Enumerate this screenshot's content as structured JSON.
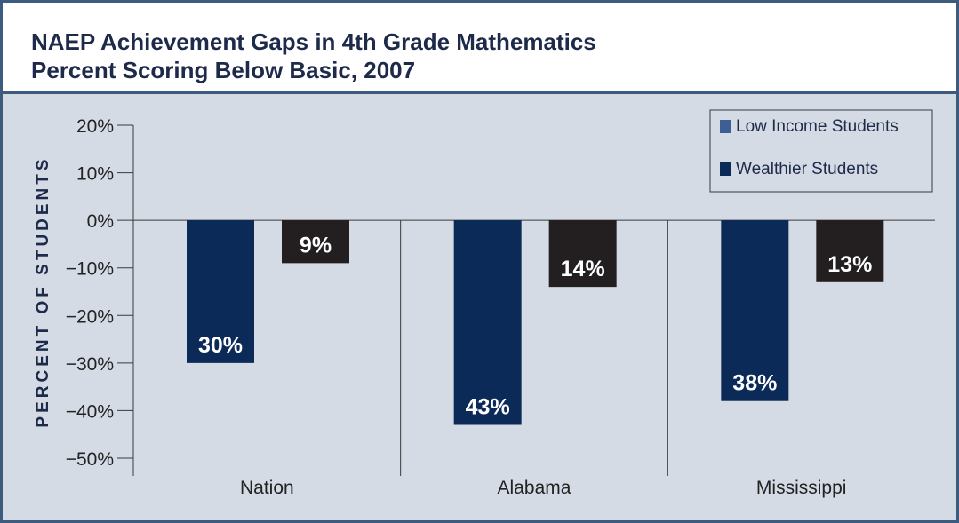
{
  "chart_data": {
    "type": "bar",
    "title": "NAEP Achievement Gaps in 4th Grade Mathematics",
    "subtitle": "Percent Scoring Below Basic, 2007",
    "ylabel": "PERCENT OF STUDENTS",
    "xlabel": "",
    "ylim": [
      -50,
      20
    ],
    "yticks": [
      20,
      10,
      0,
      -10,
      -20,
      -30,
      -40,
      -50
    ],
    "ytick_labels": [
      "20%",
      "10%",
      "0%",
      "−10%",
      "−20%",
      "−30%",
      "−40%",
      "−50%"
    ],
    "categories": [
      "Nation",
      "Alabama",
      "Mississippi"
    ],
    "series": [
      {
        "name": "Low Income Students",
        "values": [
          -30,
          -43,
          -38
        ],
        "labels": [
          "30%",
          "43%",
          "38%"
        ],
        "color": "#0b2a57"
      },
      {
        "name": "Wealthier Students",
        "values": [
          -9,
          -14,
          -13
        ],
        "labels": [
          "9%",
          "14%",
          "13%"
        ],
        "color": "#231f20"
      }
    ],
    "legend_position": "top-right",
    "grid": false
  },
  "colors": {
    "frame_border": "#3d5b7f",
    "plot_background": "#d4dbe5",
    "axis": "#3a3a3a",
    "legend_low_income_swatch": "#3d5f94",
    "legend_wealthier_swatch": "#0b2a57",
    "bar_label": "#ffffff"
  }
}
